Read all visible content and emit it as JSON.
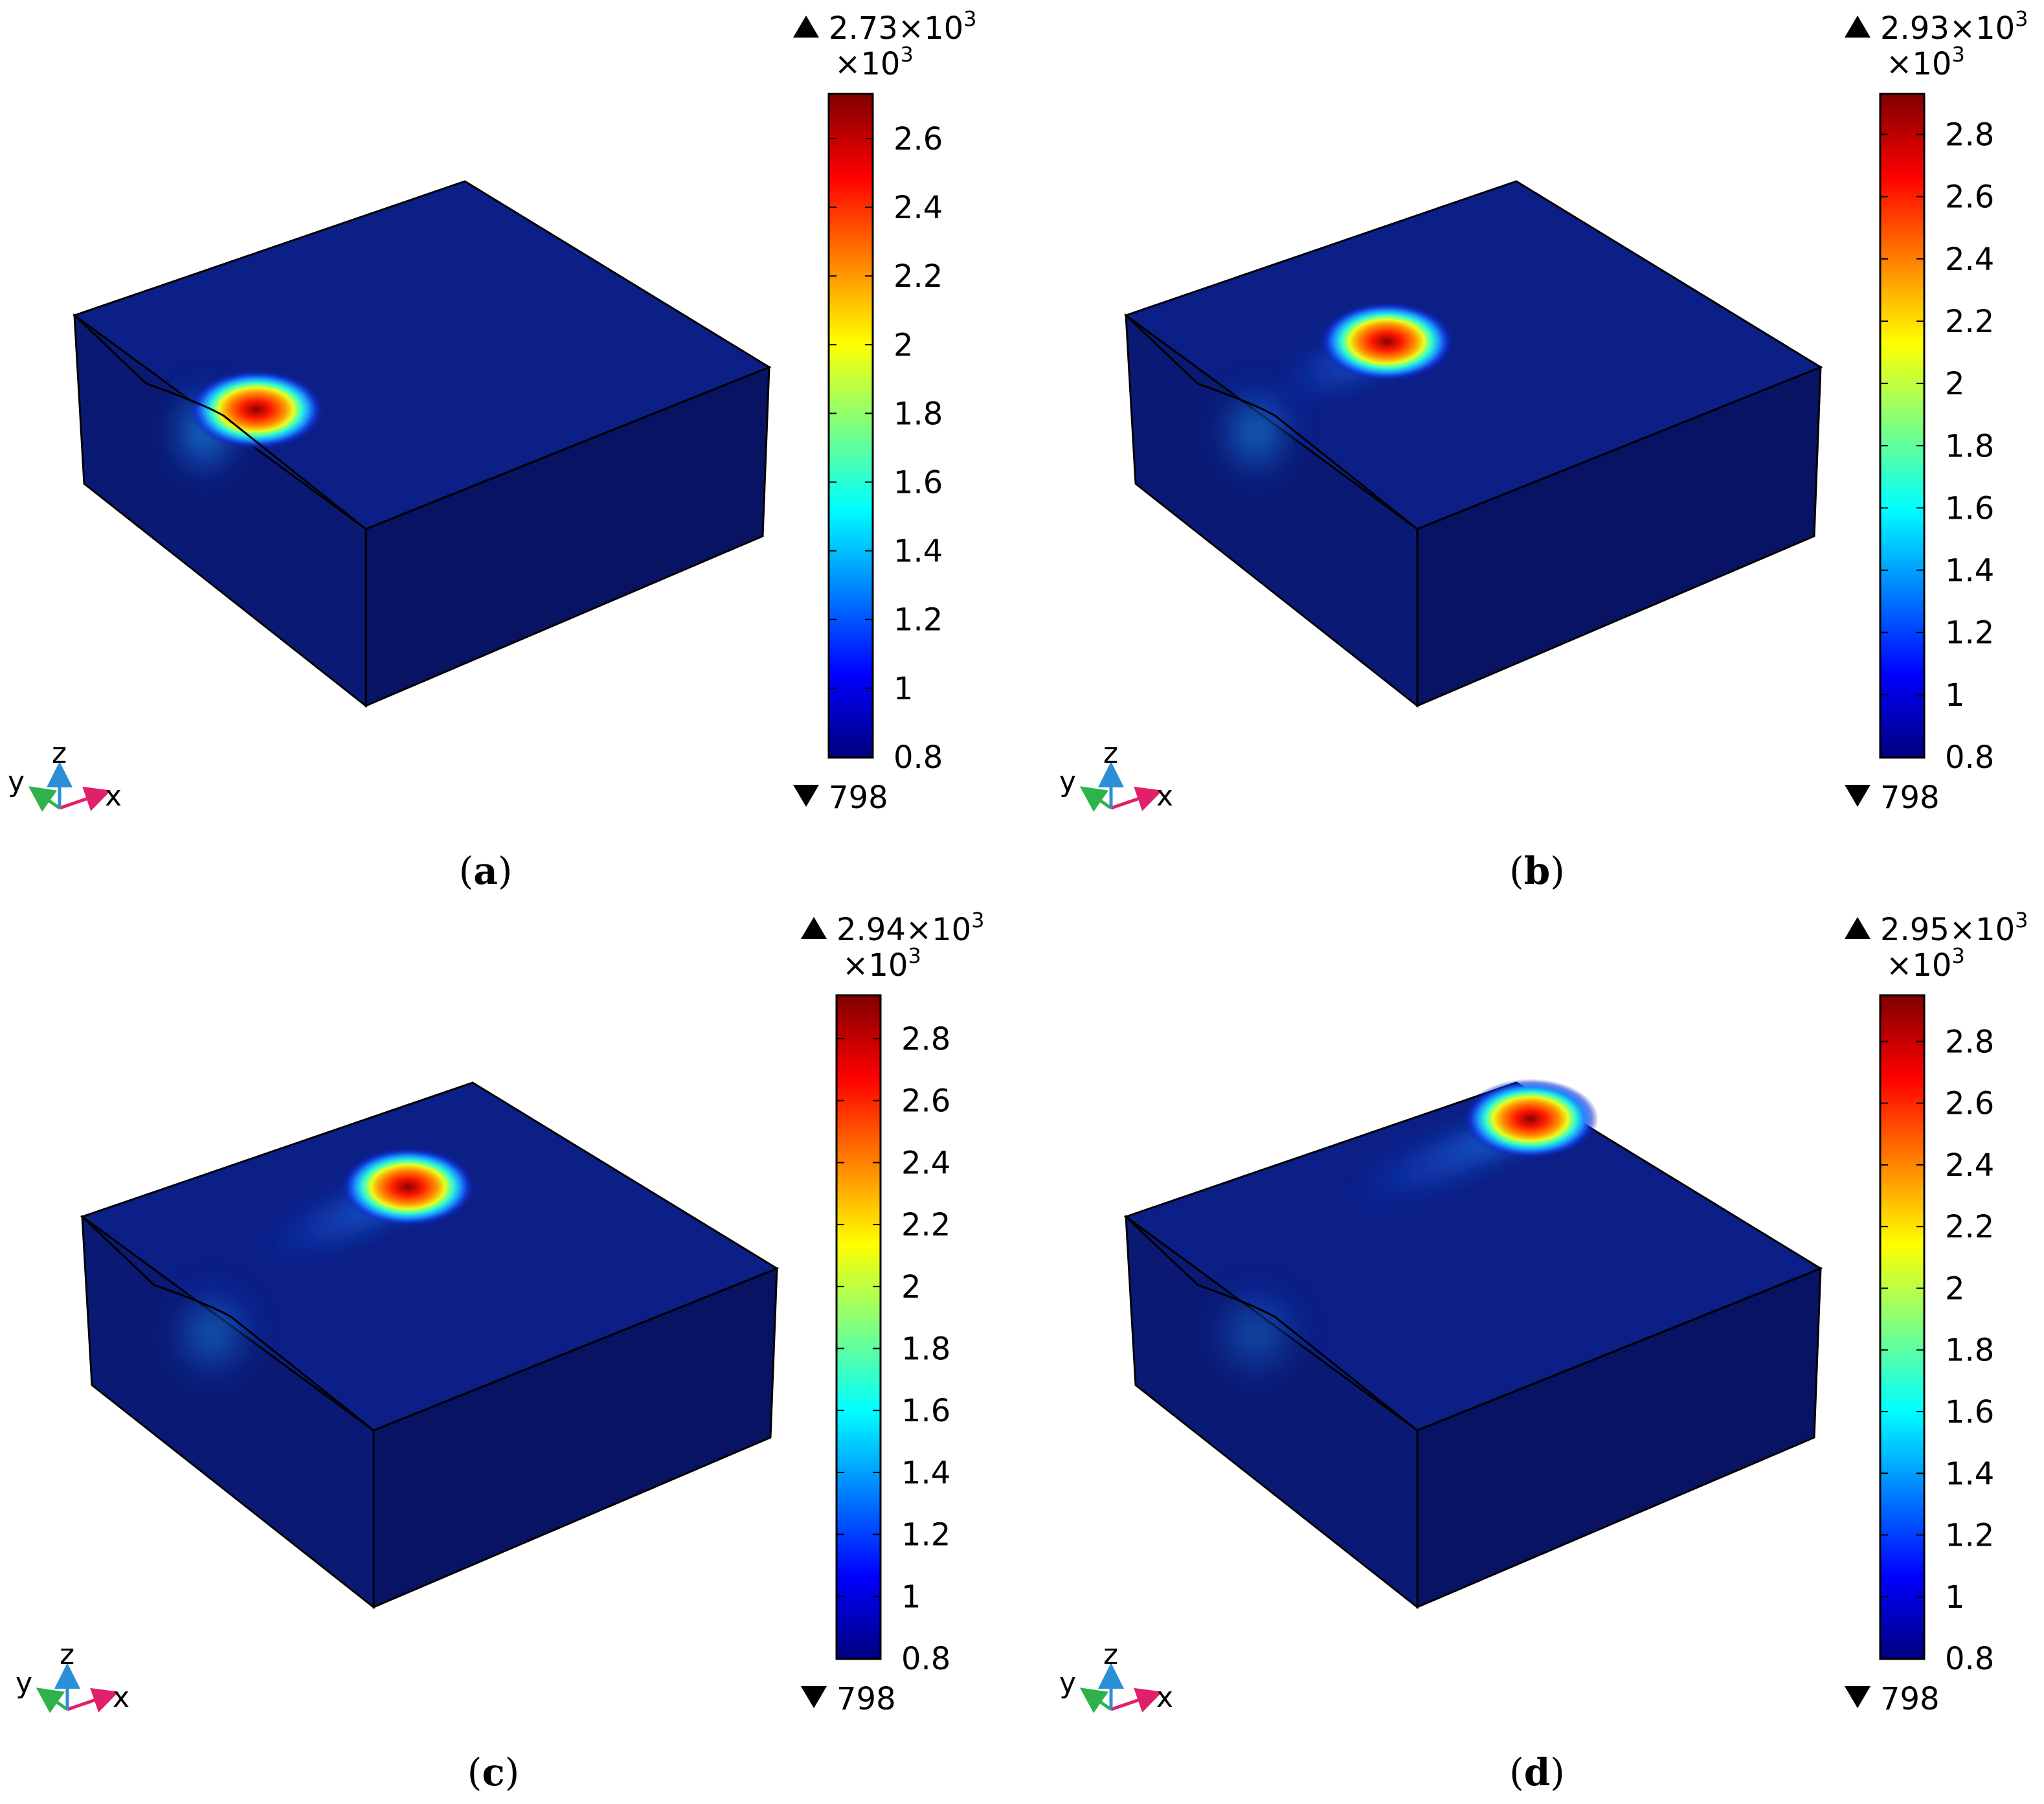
{
  "colors": {
    "block_dark": "#0b1f86",
    "block_mid": "#0a1a74",
    "block_front": "#081363",
    "edge": "#000000",
    "axis_x": "#e0206a",
    "axis_y": "#2db34a",
    "axis_z": "#2a8fd6"
  },
  "colormap": [
    "#00007f",
    "#0000ff",
    "#0080ff",
    "#00ffff",
    "#7fff7f",
    "#ffff00",
    "#ff8000",
    "#ff0000",
    "#7f0000"
  ],
  "axis_labels": {
    "x": "x",
    "y": "y",
    "z": "z"
  },
  "panels": [
    {
      "label": "(a)",
      "colorbar": {
        "max_label": "2.73×10",
        "max_exp": "3",
        "min_label": "798",
        "multiplier": "×10",
        "multiplier_exp": "3",
        "min": 0.798,
        "max": 2.73,
        "ticks": [
          "2.6",
          "2.4",
          "2.2",
          "2",
          "1.8",
          "1.6",
          "1.4",
          "1.2",
          "1",
          "0.8"
        ],
        "tick_values": [
          2.6,
          2.4,
          2.2,
          2.0,
          1.8,
          1.6,
          1.4,
          1.2,
          1.0,
          0.8
        ]
      },
      "hotspot": {
        "u": 0.26,
        "v": 0.4,
        "tail": 0.0
      }
    },
    {
      "label": "(b)",
      "colorbar": {
        "max_label": "2.93×10",
        "max_exp": "3",
        "min_label": "798",
        "multiplier": "×10",
        "multiplier_exp": "3",
        "min": 0.798,
        "max": 2.93,
        "ticks": [
          "2.8",
          "2.6",
          "2.4",
          "2.2",
          "2",
          "1.8",
          "1.6",
          "1.4",
          "1.2",
          "1",
          "0.8"
        ],
        "tick_values": [
          2.8,
          2.6,
          2.4,
          2.2,
          2.0,
          1.8,
          1.6,
          1.4,
          1.2,
          1.0,
          0.8
        ]
      },
      "hotspot": {
        "u": 0.43,
        "v": 0.28,
        "tail": 0.15
      }
    },
    {
      "label": "(c)",
      "colorbar": {
        "max_label": "2.94×10",
        "max_exp": "3",
        "min_label": "798",
        "multiplier": "×10",
        "multiplier_exp": "3",
        "min": 0.798,
        "max": 2.94,
        "ticks": [
          "2.8",
          "2.6",
          "2.4",
          "2.2",
          "2",
          "1.8",
          "1.6",
          "1.4",
          "1.2",
          "1",
          "0.8"
        ],
        "tick_values": [
          2.8,
          2.6,
          2.4,
          2.2,
          2.0,
          1.8,
          1.6,
          1.4,
          1.2,
          1.0,
          0.8
        ]
      },
      "hotspot": {
        "u": 0.57,
        "v": 0.14,
        "tail": 0.3
      }
    },
    {
      "label": "(d)",
      "colorbar": {
        "max_label": "2.95×10",
        "max_exp": "3",
        "min_label": "798",
        "multiplier": "×10",
        "multiplier_exp": "3",
        "min": 0.798,
        "max": 2.95,
        "ticks": [
          "2.8",
          "2.6",
          "2.4",
          "2.2",
          "2",
          "1.8",
          "1.6",
          "1.4",
          "1.2",
          "1",
          "0.8"
        ],
        "tick_values": [
          2.8,
          2.6,
          2.4,
          2.2,
          2.0,
          1.8,
          1.6,
          1.4,
          1.2,
          1.0,
          0.8
        ]
      },
      "hotspot": {
        "u": 0.74,
        "v": 0.02,
        "tail": 0.45
      }
    }
  ]
}
